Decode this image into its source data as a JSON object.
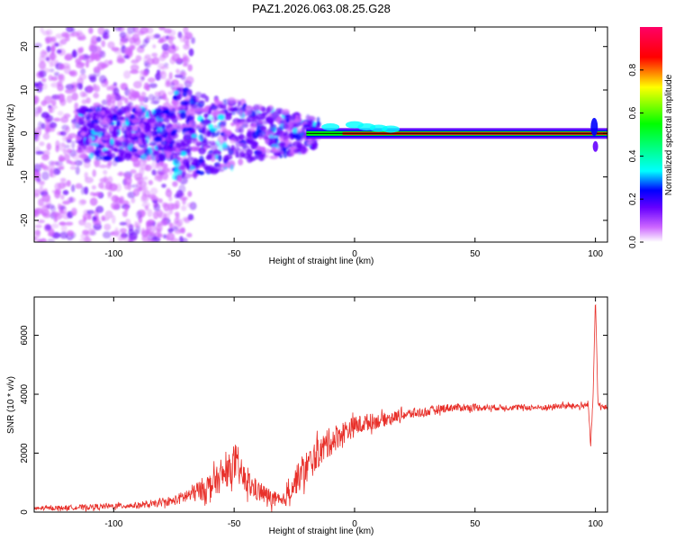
{
  "title": "PAZ1.2026.063.08.25.G28",
  "chart_data": [
    {
      "type": "heatmap",
      "title": "PAZ1.2026.063.08.25.G28",
      "xlabel": "Height of straight line (km)",
      "ylabel": "Frequency (Hz)",
      "xlim": [
        -133,
        105
      ],
      "ylim": [
        -25,
        24.5
      ],
      "xticks": [
        -100,
        -50,
        0,
        50,
        100
      ],
      "yticks": [
        -20,
        -10,
        0,
        10,
        20
      ],
      "xtick_labels": [
        "-100",
        "-50",
        "0",
        "50",
        "100"
      ],
      "ytick_labels": [
        "-20",
        "-10",
        "0",
        "10",
        "20"
      ],
      "colorbar": {
        "label": "Normalized spectral amplitude",
        "range": [
          0,
          1
        ],
        "ticks": [
          0.0,
          0.2,
          0.4,
          0.6,
          0.8
        ],
        "tick_labels": [
          "0.0",
          "0.2",
          "0.4",
          "0.6",
          "0.8"
        ],
        "colors": [
          "#ffffff",
          "#cc66ff",
          "#6600ff",
          "#0000ff",
          "#00ffff",
          "#00ff00",
          "#ffff00",
          "#ff0000",
          "#ff0066"
        ]
      },
      "description_of_signal": {
        "carrier_frequency_hz": 0,
        "strong_from_height_km": -20,
        "noisy_below_height_km": -75
      }
    },
    {
      "type": "line",
      "xlabel": "Height of straight line (km)",
      "ylabel": "SNR (10 * v/v)",
      "xlim": [
        -133,
        105
      ],
      "ylim": [
        0,
        7300
      ],
      "xticks": [
        -100,
        -50,
        0,
        50,
        100
      ],
      "yticks": [
        0,
        2000,
        4000,
        6000
      ],
      "xtick_labels": [
        "-100",
        "-50",
        "0",
        "50",
        "100"
      ],
      "ytick_labels": [
        "0",
        "2000",
        "4000",
        "6000"
      ],
      "series": [
        {
          "name": "SNR",
          "color": "#e8302a",
          "x": [
            -133,
            -120,
            -100,
            -85,
            -75,
            -68,
            -60,
            -55,
            -50,
            -47,
            -45,
            -40,
            -35,
            -30,
            -25,
            -20,
            -15,
            -10,
            -5,
            0,
            5,
            10,
            15,
            20,
            25,
            30,
            35,
            40,
            45,
            50,
            55,
            60,
            65,
            70,
            75,
            80,
            85,
            90,
            95,
            97,
            98,
            99,
            100,
            101,
            103,
            105
          ],
          "values": [
            120,
            150,
            200,
            250,
            380,
            600,
            900,
            1200,
            1600,
            1300,
            1000,
            700,
            500,
            300,
            1000,
            1500,
            2000,
            2400,
            2700,
            2900,
            3050,
            3100,
            3200,
            3300,
            3350,
            3400,
            3500,
            3550,
            3550,
            3550,
            3550,
            3550,
            3550,
            3550,
            3550,
            3550,
            3600,
            3600,
            3600,
            3700,
            2200,
            3900,
            7300,
            3700,
            3550,
            3550
          ],
          "noise_amplitude": [
            60,
            80,
            100,
            100,
            150,
            300,
            450,
            500,
            550,
            500,
            450,
            350,
            300,
            250,
            450,
            600,
            500,
            500,
            400,
            350,
            300,
            250,
            200,
            180,
            170,
            160,
            150,
            140,
            130,
            120,
            110,
            100,
            100,
            100,
            100,
            100,
            100,
            100,
            100,
            100,
            100,
            100,
            100,
            100,
            100,
            100
          ]
        }
      ]
    }
  ]
}
